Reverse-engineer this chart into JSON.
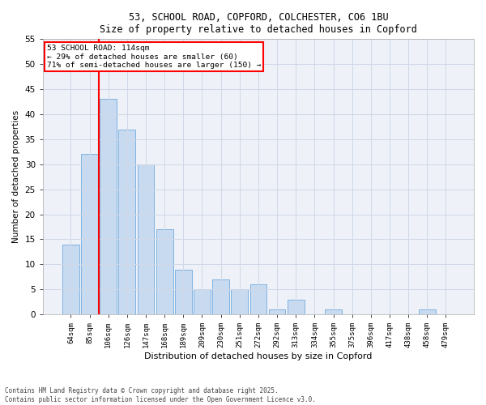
{
  "title1": "53, SCHOOL ROAD, COPFORD, COLCHESTER, CO6 1BU",
  "title2": "Size of property relative to detached houses in Copford",
  "xlabel": "Distribution of detached houses by size in Copford",
  "ylabel": "Number of detached properties",
  "categories": [
    "64sqm",
    "85sqm",
    "106sqm",
    "126sqm",
    "147sqm",
    "168sqm",
    "189sqm",
    "209sqm",
    "230sqm",
    "251sqm",
    "272sqm",
    "292sqm",
    "313sqm",
    "334sqm",
    "355sqm",
    "375sqm",
    "396sqm",
    "417sqm",
    "438sqm",
    "458sqm",
    "479sqm"
  ],
  "values": [
    14,
    32,
    43,
    37,
    30,
    17,
    9,
    5,
    7,
    5,
    6,
    1,
    3,
    0,
    1,
    0,
    0,
    0,
    0,
    1,
    0
  ],
  "bar_color": "#c8daf0",
  "bar_edge_color": "#7fb2e0",
  "grid_color": "#d0d8e8",
  "vline_color": "red",
  "annotation_text": "53 SCHOOL ROAD: 114sqm\n← 29% of detached houses are smaller (60)\n71% of semi-detached houses are larger (150) →",
  "annotation_box_edgecolor": "red",
  "annotation_box_facecolor": "white",
  "ylim": [
    0,
    55
  ],
  "yticks": [
    0,
    5,
    10,
    15,
    20,
    25,
    30,
    35,
    40,
    45,
    50,
    55
  ],
  "footer": "Contains HM Land Registry data © Crown copyright and database right 2025.\nContains public sector information licensed under the Open Government Licence v3.0.",
  "bg_color": "#ffffff",
  "plot_bg_color": "#eef2f8"
}
